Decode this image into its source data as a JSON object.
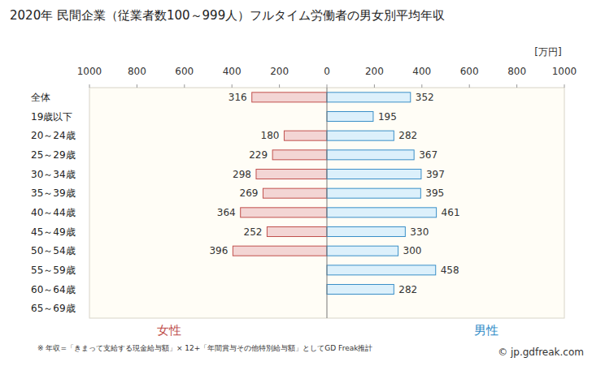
{
  "chart_data": {
    "type": "bar",
    "orientation": "horizontal",
    "title": "2020年 民間企業（従業者数100～999人）フルタイム労働者の男女別平均年収",
    "xlabel": "[万円]",
    "categories": [
      "全体",
      "19歳以下",
      "20～24歳",
      "25～29歳",
      "30～34歳",
      "35～39歳",
      "40～44歳",
      "45～49歳",
      "50～54歳",
      "55～59歳",
      "60～64歳",
      "65～69歳"
    ],
    "series": [
      {
        "name": "女性",
        "color": "#f3d5d4",
        "values": [
          316,
          null,
          180,
          229,
          298,
          269,
          364,
          252,
          396,
          null,
          null,
          null
        ]
      },
      {
        "name": "男性",
        "color": "#dcf0fb",
        "values": [
          352,
          195,
          282,
          367,
          397,
          395,
          461,
          330,
          300,
          458,
          282,
          null
        ]
      }
    ],
    "xlim": [
      0,
      1000
    ],
    "xticks": [
      0,
      200,
      400,
      600,
      800,
      1000
    ],
    "grid": false,
    "data_labels": true,
    "note": "※ 年収=「きまって支給する現金給与額」× 12+「年間賞与その他特別給与額」としてGD Freak推計",
    "source": "© jp.gdfreak.com"
  }
}
